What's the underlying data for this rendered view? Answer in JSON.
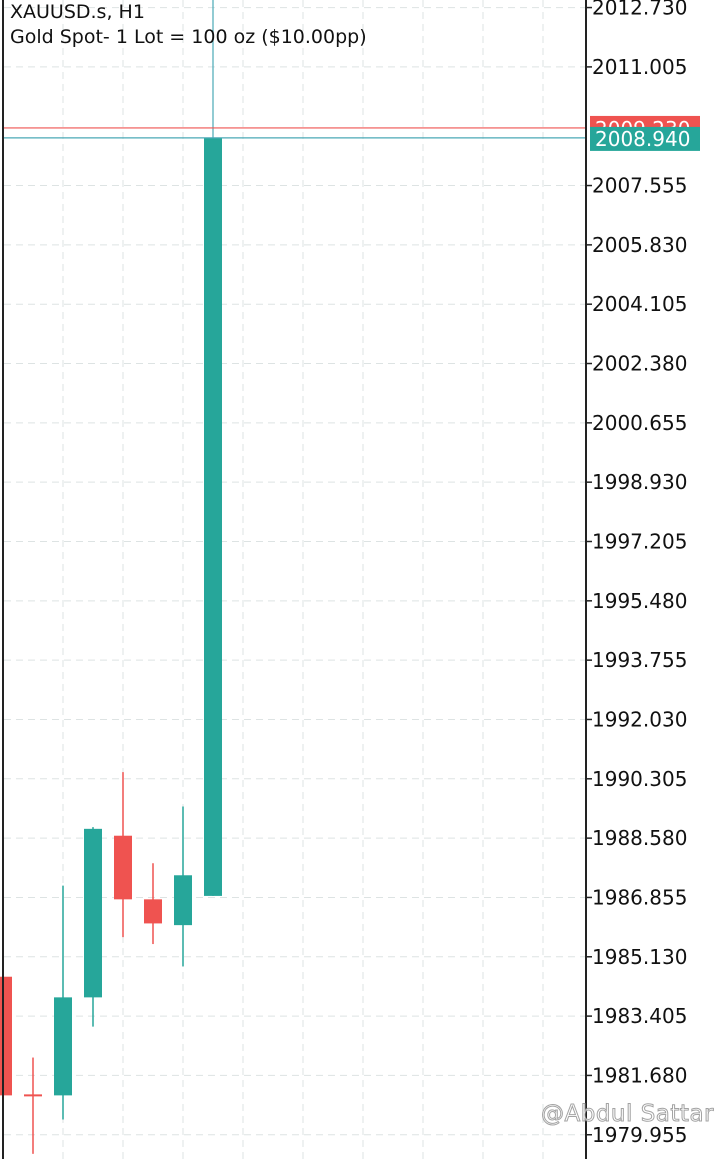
{
  "header": {
    "symbol": "XAUUSD.s, H1",
    "description": "Gold Spot- 1 Lot = 100 oz ($10.00pp)"
  },
  "watermark": "@Abdul Sattar",
  "colors": {
    "bull": "#26a69a",
    "bear": "#ef5350",
    "grid": "#dde3e3",
    "axis": "#222222",
    "crosshair": "#4aa9b6",
    "ask_line": "#ef5350"
  },
  "chart_data": {
    "type": "candlestick",
    "y_ticks": [
      "2012.730",
      "2011.005",
      "2007.555",
      "2005.830",
      "2004.105",
      "2002.380",
      "2000.655",
      "1998.930",
      "1997.205",
      "1995.480",
      "1993.755",
      "1992.030",
      "1990.305",
      "1988.580",
      "1986.855",
      "1985.130",
      "1983.405",
      "1981.680",
      "1979.955"
    ],
    "candles": [
      {
        "open": 1984.55,
        "high": 1984.55,
        "low": 1981.1,
        "close": 1981.1
      },
      {
        "open": 1981.1,
        "high": 1982.2,
        "low": 1979.4,
        "close": 1981.05
      },
      {
        "open": 1981.1,
        "high": 1987.2,
        "low": 1980.4,
        "close": 1983.95
      },
      {
        "open": 1983.95,
        "high": 1988.9,
        "low": 1983.1,
        "close": 1988.85
      },
      {
        "open": 1988.65,
        "high": 1990.5,
        "low": 1985.7,
        "close": 1986.8
      },
      {
        "open": 1986.8,
        "high": 1987.85,
        "low": 1985.5,
        "close": 1986.1
      },
      {
        "open": 1986.05,
        "high": 1989.5,
        "low": 1984.85,
        "close": 1987.5
      },
      {
        "open": 1986.9,
        "high": 2008.94,
        "low": 1986.9,
        "close": 2008.94
      }
    ],
    "bid_price": "2008.940",
    "ask_price": "2009.230",
    "ask_value": 2009.23,
    "ylim": [
      1979.25,
      2012.95
    ],
    "grid": true
  }
}
